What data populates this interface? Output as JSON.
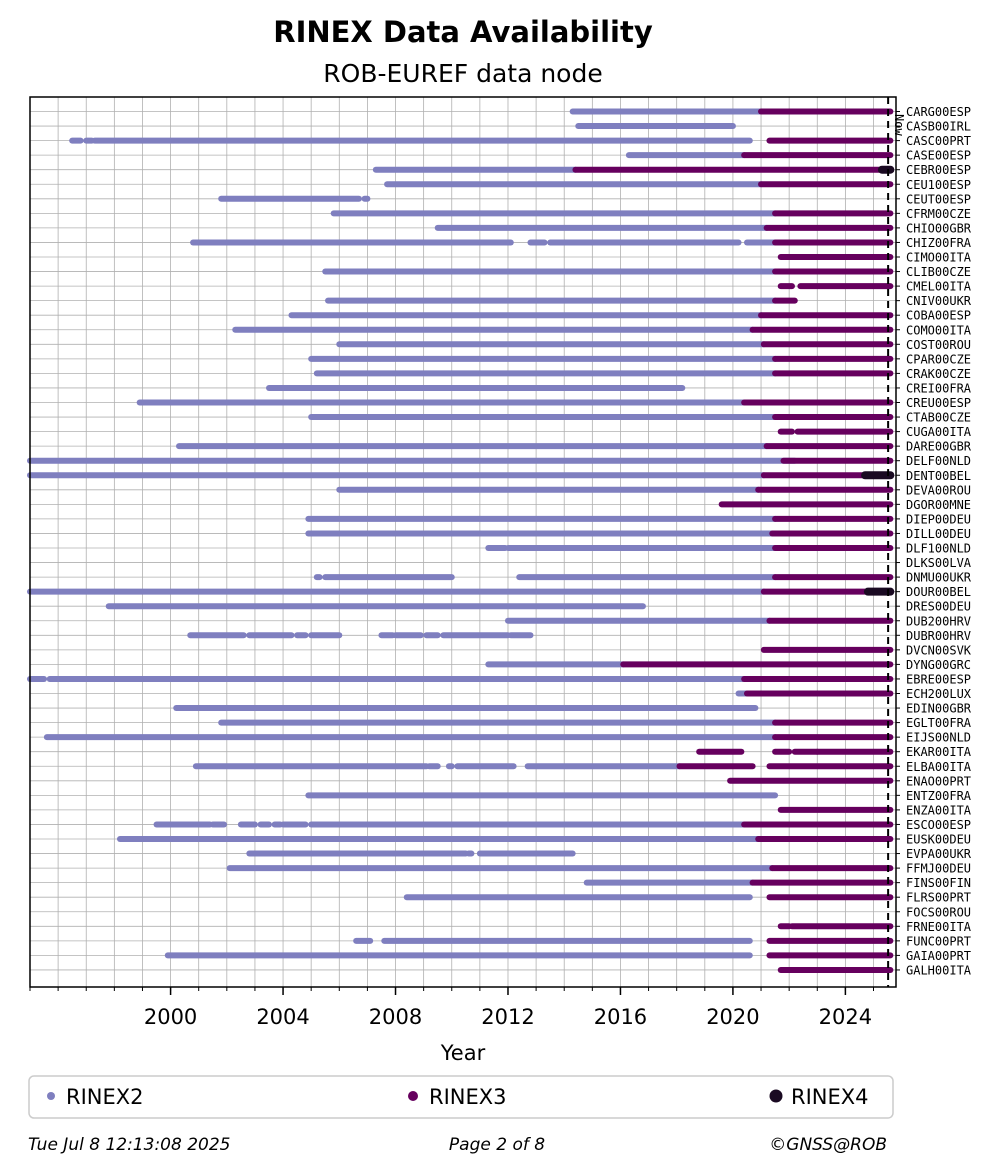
{
  "chart_data": {
    "type": "timeline",
    "title": "RINEX Data Availability",
    "subtitle": "ROB-EUREF data node",
    "xlabel": "Year",
    "xlim": [
      1995.0,
      2025.8
    ],
    "xticks": [
      2000,
      2004,
      2008,
      2012,
      2016,
      2020,
      2024
    ],
    "xtick_labels": [
      "2000",
      "2004",
      "2008",
      "2012",
      "2016",
      "2020",
      "2024"
    ],
    "now": 2025.52,
    "now_label": "Now",
    "colors": {
      "RINEX2": "#7f7fbf",
      "RINEX3": "#66005e",
      "RINEX4": "#1a0a22"
    },
    "legend": [
      {
        "key": "RINEX2",
        "label": "RINEX2"
      },
      {
        "key": "RINEX3",
        "label": "RINEX3"
      },
      {
        "key": "RINEX4",
        "label": "RINEX4"
      }
    ],
    "stations": [
      {
        "name": "CARG00ESP",
        "r2": [
          [
            2014.3,
            2021.0
          ]
        ],
        "r3": [
          [
            2021.0,
            2025.6
          ]
        ]
      },
      {
        "name": "CASB00IRL",
        "r2": [
          [
            2014.5,
            2020.0
          ]
        ],
        "r3": []
      },
      {
        "name": "CASC00PRT",
        "r2": [
          [
            1996.5,
            1996.8
          ],
          [
            1997.0,
            1997.2
          ],
          [
            1997.3,
            2020.6
          ]
        ],
        "r3": [
          [
            2021.3,
            2025.6
          ]
        ]
      },
      {
        "name": "CASE00ESP",
        "r2": [
          [
            2016.3,
            2020.4
          ]
        ],
        "r3": [
          [
            2020.4,
            2025.6
          ]
        ]
      },
      {
        "name": "CEBR00ESP",
        "r2": [
          [
            2007.3,
            2014.4
          ]
        ],
        "r3": [
          [
            2014.4,
            2025.6
          ]
        ],
        "r4": [
          [
            2025.3,
            2025.6
          ]
        ]
      },
      {
        "name": "CEU100ESP",
        "r2": [
          [
            2007.7,
            2021.0
          ]
        ],
        "r3": [
          [
            2021.0,
            2025.6
          ]
        ]
      },
      {
        "name": "CEUT00ESP",
        "r2": [
          [
            2001.8,
            2006.7
          ],
          [
            2006.9,
            2007.0
          ]
        ],
        "r3": []
      },
      {
        "name": "CFRM00CZE",
        "r2": [
          [
            2005.8,
            2021.5
          ]
        ],
        "r3": [
          [
            2021.5,
            2025.6
          ]
        ]
      },
      {
        "name": "CHIO00GBR",
        "r2": [
          [
            2009.5,
            2021.2
          ]
        ],
        "r3": [
          [
            2021.2,
            2025.6
          ]
        ]
      },
      {
        "name": "CHIZ00FRA",
        "r2": [
          [
            2000.8,
            2012.1
          ],
          [
            2012.8,
            2013.3
          ],
          [
            2013.5,
            2020.2
          ],
          [
            2020.5,
            2021.5
          ]
        ],
        "r3": [
          [
            2021.5,
            2025.6
          ]
        ]
      },
      {
        "name": "CIMO00ITA",
        "r2": [],
        "r3": [
          [
            2021.7,
            2025.6
          ]
        ]
      },
      {
        "name": "CLIB00CZE",
        "r2": [
          [
            2005.5,
            2021.5
          ]
        ],
        "r3": [
          [
            2021.5,
            2025.6
          ]
        ]
      },
      {
        "name": "CMEL00ITA",
        "r2": [],
        "r3": [
          [
            2021.7,
            2022.1
          ],
          [
            2022.4,
            2025.6
          ]
        ]
      },
      {
        "name": "CNIV00UKR",
        "r2": [
          [
            2005.6,
            2021.5
          ]
        ],
        "r3": [
          [
            2021.5,
            2022.2
          ]
        ]
      },
      {
        "name": "COBA00ESP",
        "r2": [
          [
            2004.3,
            2021.0
          ]
        ],
        "r3": [
          [
            2021.0,
            2025.6
          ]
        ]
      },
      {
        "name": "COMO00ITA",
        "r2": [
          [
            2002.3,
            2020.7
          ]
        ],
        "r3": [
          [
            2020.7,
            2025.6
          ]
        ]
      },
      {
        "name": "COST00ROU",
        "r2": [
          [
            2006.0,
            2021.1
          ]
        ],
        "r3": [
          [
            2021.1,
            2025.6
          ]
        ]
      },
      {
        "name": "CPAR00CZE",
        "r2": [
          [
            2005.0,
            2021.5
          ]
        ],
        "r3": [
          [
            2021.5,
            2025.6
          ]
        ]
      },
      {
        "name": "CRAK00CZE",
        "r2": [
          [
            2005.2,
            2021.5
          ]
        ],
        "r3": [
          [
            2021.5,
            2025.6
          ]
        ]
      },
      {
        "name": "CREI00FRA",
        "r2": [
          [
            2003.5,
            2018.2
          ]
        ],
        "r3": []
      },
      {
        "name": "CREU00ESP",
        "r2": [
          [
            1998.9,
            2020.4
          ]
        ],
        "r3": [
          [
            2020.4,
            2025.6
          ]
        ]
      },
      {
        "name": "CTAB00CZE",
        "r2": [
          [
            2005.0,
            2021.5
          ]
        ],
        "r3": [
          [
            2021.5,
            2025.6
          ]
        ]
      },
      {
        "name": "CUGA00ITA",
        "r2": [],
        "r3": [
          [
            2021.7,
            2022.1
          ],
          [
            2022.3,
            2025.6
          ]
        ]
      },
      {
        "name": "DARE00GBR",
        "r2": [
          [
            2000.3,
            2021.2
          ]
        ],
        "r3": [
          [
            2021.2,
            2025.6
          ]
        ]
      },
      {
        "name": "DELF00NLD",
        "r2": [
          [
            1995.0,
            2022.2
          ]
        ],
        "r3": [
          [
            2021.8,
            2025.6
          ]
        ]
      },
      {
        "name": "DENT00BEL",
        "r2": [
          [
            1995.0,
            2021.1
          ]
        ],
        "r3": [
          [
            2021.1,
            2025.6
          ]
        ],
        "r4": [
          [
            2024.7,
            2025.6
          ]
        ]
      },
      {
        "name": "DEVA00ROU",
        "r2": [
          [
            2006.0,
            2020.9
          ]
        ],
        "r3": [
          [
            2020.9,
            2025.6
          ]
        ]
      },
      {
        "name": "DGOR00MNE",
        "r2": [],
        "r3": [
          [
            2019.6,
            2025.6
          ]
        ]
      },
      {
        "name": "DIEP00DEU",
        "r2": [
          [
            2004.9,
            2021.5
          ]
        ],
        "r3": [
          [
            2021.5,
            2025.6
          ]
        ]
      },
      {
        "name": "DILL00DEU",
        "r2": [
          [
            2004.9,
            2021.4
          ]
        ],
        "r3": [
          [
            2021.4,
            2025.6
          ]
        ]
      },
      {
        "name": "DLF100NLD",
        "r2": [
          [
            2011.3,
            2011.9
          ],
          [
            2012.0,
            2021.5
          ]
        ],
        "r3": [
          [
            2021.5,
            2025.6
          ]
        ]
      },
      {
        "name": "DLKS00LVA",
        "r2": [],
        "r3": []
      },
      {
        "name": "DNMU00UKR",
        "r2": [
          [
            2005.2,
            2005.3
          ],
          [
            2005.5,
            2010.0
          ],
          [
            2012.4,
            2021.5
          ]
        ],
        "r3": [
          [
            2021.5,
            2025.6
          ]
        ]
      },
      {
        "name": "DOUR00BEL",
        "r2": [
          [
            1995.0,
            2021.1
          ]
        ],
        "r3": [
          [
            2021.1,
            2025.6
          ]
        ],
        "r4": [
          [
            2024.8,
            2025.6
          ]
        ]
      },
      {
        "name": "DRES00DEU",
        "r2": [
          [
            1997.8,
            2016.8
          ]
        ],
        "r3": []
      },
      {
        "name": "DUB200HRV",
        "r2": [
          [
            2012.0,
            2021.3
          ]
        ],
        "r3": [
          [
            2021.3,
            2025.6
          ]
        ]
      },
      {
        "name": "DUBR00HRV",
        "r2": [
          [
            2000.7,
            2002.6
          ],
          [
            2002.8,
            2004.3
          ],
          [
            2004.5,
            2004.8
          ],
          [
            2005.0,
            2006.0
          ],
          [
            2007.5,
            2007.9
          ],
          [
            2008.0,
            2008.9
          ],
          [
            2009.1,
            2009.5
          ],
          [
            2009.7,
            2012.0
          ],
          [
            2012.1,
            2012.8
          ]
        ],
        "r3": []
      },
      {
        "name": "DVCN00SVK",
        "r2": [],
        "r3": [
          [
            2021.1,
            2025.6
          ]
        ]
      },
      {
        "name": "DYNG00GRC",
        "r2": [
          [
            2011.3,
            2016.1
          ]
        ],
        "r3": [
          [
            2016.1,
            2025.6
          ]
        ]
      },
      {
        "name": "EBRE00ESP",
        "r2": [
          [
            1995.0,
            1995.5
          ],
          [
            1995.7,
            2020.4
          ]
        ],
        "r3": [
          [
            2020.4,
            2025.6
          ]
        ]
      },
      {
        "name": "ECH200LUX",
        "r2": [
          [
            2020.2,
            2020.5
          ]
        ],
        "r3": [
          [
            2020.5,
            2025.6
          ]
        ]
      },
      {
        "name": "EDIN00GBR",
        "r2": [
          [
            2000.2,
            2020.8
          ]
        ],
        "r3": []
      },
      {
        "name": "EGLT00FRA",
        "r2": [
          [
            2001.8,
            2021.5
          ]
        ],
        "r3": [
          [
            2021.5,
            2025.6
          ]
        ]
      },
      {
        "name": "EIJS00NLD",
        "r2": [
          [
            1995.6,
            2021.5
          ]
        ],
        "r3": [
          [
            2021.5,
            2025.6
          ]
        ]
      },
      {
        "name": "EKAR00ITA",
        "r2": [],
        "r3": [
          [
            2018.8,
            2020.3
          ],
          [
            2021.5,
            2022.0
          ],
          [
            2022.2,
            2023.0
          ],
          [
            2023.0,
            2025.6
          ]
        ]
      },
      {
        "name": "ELBA00ITA",
        "r2": [
          [
            2000.9,
            2009.1
          ],
          [
            2009.2,
            2009.5
          ],
          [
            2009.9,
            2010.0
          ],
          [
            2010.2,
            2012.2
          ],
          [
            2012.7,
            2018.1
          ]
        ],
        "r3": [
          [
            2018.1,
            2020.7
          ],
          [
            2021.3,
            2025.6
          ]
        ]
      },
      {
        "name": "ENAO00PRT",
        "r2": [],
        "r3": [
          [
            2019.9,
            2025.6
          ]
        ]
      },
      {
        "name": "ENTZ00FRA",
        "r2": [
          [
            2004.9,
            2021.5
          ]
        ],
        "r3": []
      },
      {
        "name": "ENZA00ITA",
        "r2": [],
        "r3": [
          [
            2021.7,
            2025.6
          ]
        ]
      },
      {
        "name": "ESCO00ESP",
        "r2": [
          [
            1999.5,
            2001.4
          ],
          [
            2001.5,
            2001.9
          ],
          [
            2002.5,
            2003.0
          ],
          [
            2003.2,
            2003.5
          ],
          [
            2003.7,
            2003.9
          ],
          [
            2004.0,
            2004.8
          ],
          [
            2005.0,
            2020.4
          ]
        ],
        "r3": [
          [
            2020.4,
            2025.6
          ]
        ]
      },
      {
        "name": "EUSK00DEU",
        "r2": [
          [
            1998.2,
            2020.9
          ]
        ],
        "r3": [
          [
            2020.9,
            2025.6
          ]
        ]
      },
      {
        "name": "EVPA00UKR",
        "r2": [
          [
            2002.8,
            2010.5
          ],
          [
            2010.6,
            2010.7
          ],
          [
            2011.0,
            2014.3
          ]
        ],
        "r3": []
      },
      {
        "name": "FFMJ00DEU",
        "r2": [
          [
            2002.1,
            2021.4
          ]
        ],
        "r3": [
          [
            2021.4,
            2025.6
          ]
        ]
      },
      {
        "name": "FINS00FIN",
        "r2": [
          [
            2014.8,
            2020.7
          ]
        ],
        "r3": [
          [
            2020.7,
            2025.6
          ]
        ]
      },
      {
        "name": "FLRS00PRT",
        "r2": [
          [
            2008.4,
            2020.6
          ]
        ],
        "r3": [
          [
            2021.3,
            2025.6
          ]
        ]
      },
      {
        "name": "FOCS00ROU",
        "r2": [],
        "r3": []
      },
      {
        "name": "FRNE00ITA",
        "r2": [],
        "r3": [
          [
            2021.7,
            2022.0
          ],
          [
            2022.1,
            2025.6
          ]
        ]
      },
      {
        "name": "FUNC00PRT",
        "r2": [
          [
            2006.6,
            2007.1
          ],
          [
            2007.6,
            2020.6
          ]
        ],
        "r3": [
          [
            2021.3,
            2025.6
          ]
        ]
      },
      {
        "name": "GAIA00PRT",
        "r2": [
          [
            1999.9,
            2020.6
          ]
        ],
        "r3": [
          [
            2021.3,
            2025.6
          ]
        ]
      },
      {
        "name": "GALH00ITA",
        "r2": [],
        "r3": [
          [
            2021.7,
            2025.6
          ]
        ]
      }
    ]
  },
  "footer": {
    "timestamp": "Tue Jul  8 12:13:08 2025",
    "page": "Page 2 of 8",
    "credit": "©GNSS@ROB"
  }
}
